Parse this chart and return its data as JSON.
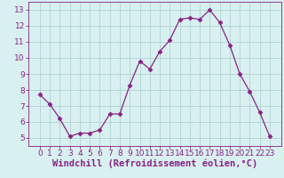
{
  "x": [
    0,
    1,
    2,
    3,
    4,
    5,
    6,
    7,
    8,
    9,
    10,
    11,
    12,
    13,
    14,
    15,
    16,
    17,
    18,
    19,
    20,
    21,
    22,
    23
  ],
  "y": [
    7.7,
    7.1,
    6.2,
    5.1,
    5.3,
    5.3,
    5.5,
    6.5,
    6.5,
    8.3,
    9.8,
    9.3,
    10.4,
    11.1,
    12.4,
    12.5,
    12.4,
    13.0,
    12.2,
    10.8,
    9.0,
    7.9,
    6.6,
    5.1
  ],
  "line_color": "#882288",
  "marker": "D",
  "markersize": 2.5,
  "linewidth": 0.9,
  "bg_color": "#d8f0f0",
  "grid_color": "#aacccc",
  "xlabel": "Windchill (Refroidissement éolien,°C)",
  "xlabel_fontsize": 7.5,
  "xlabel_color": "#882288",
  "ylim": [
    4.5,
    13.5
  ],
  "yticks": [
    5,
    6,
    7,
    8,
    9,
    10,
    11,
    12,
    13
  ],
  "xticks": [
    0,
    1,
    2,
    3,
    4,
    5,
    6,
    7,
    8,
    9,
    10,
    11,
    12,
    13,
    14,
    15,
    16,
    17,
    18,
    19,
    20,
    21,
    22,
    23
  ],
  "tick_fontsize": 6.5,
  "tick_color": "#882288"
}
